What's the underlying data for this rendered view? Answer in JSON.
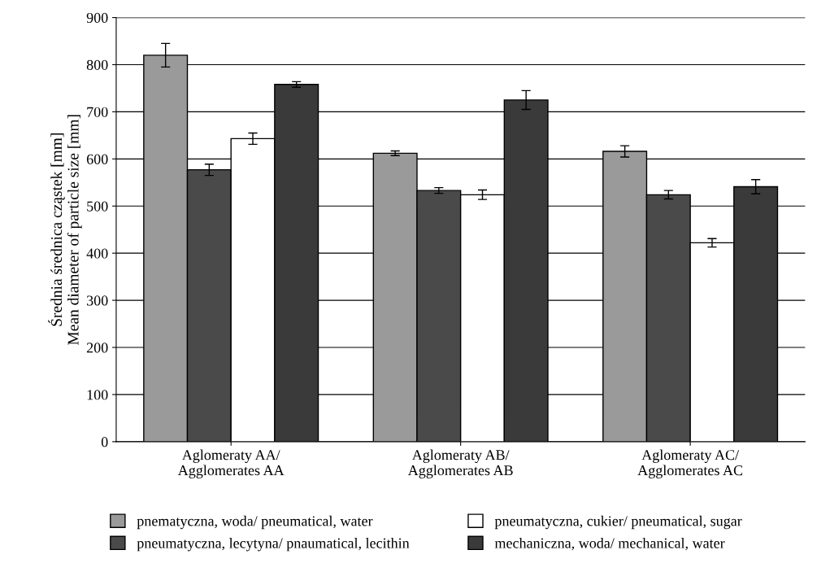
{
  "chart_data": {
    "type": "bar",
    "ylabel": "Średnia średnica cząstek [mm]\nMean diameter of particle size [mm]",
    "categories": [
      "Aglomeraty AA/\nAgglomerates AA",
      "Aglomeraty AB/\nAgglomerates AB",
      "Aglomeraty AC/\nAgglomerates AC"
    ],
    "series": [
      {
        "name": "pnematyczna, woda/ pneumatical, water",
        "color": "#9a9a9a",
        "values": [
          820,
          612,
          616
        ],
        "errors": [
          25,
          5,
          12
        ]
      },
      {
        "name": "pneumatyczna, lecytyna/ pnaumatical, lecithin",
        "color": "#4a4a4a",
        "values": [
          577,
          533,
          524
        ],
        "errors": [
          12,
          6,
          9
        ]
      },
      {
        "name": "pneumatyczna, cukier/ pneumatical, sugar",
        "color": "#ffffff",
        "values": [
          643,
          524,
          422
        ],
        "errors": [
          12,
          10,
          9
        ]
      },
      {
        "name": "mechaniczna, woda/ mechanical, water",
        "color": "#3a3a3a",
        "values": [
          758,
          725,
          541
        ],
        "errors": [
          6,
          20,
          15
        ]
      }
    ],
    "ylim": [
      0,
      900
    ],
    "yticks": [
      0,
      100,
      200,
      300,
      400,
      500,
      600,
      700,
      800,
      900
    ],
    "grid": "y",
    "legend": "bottom"
  }
}
